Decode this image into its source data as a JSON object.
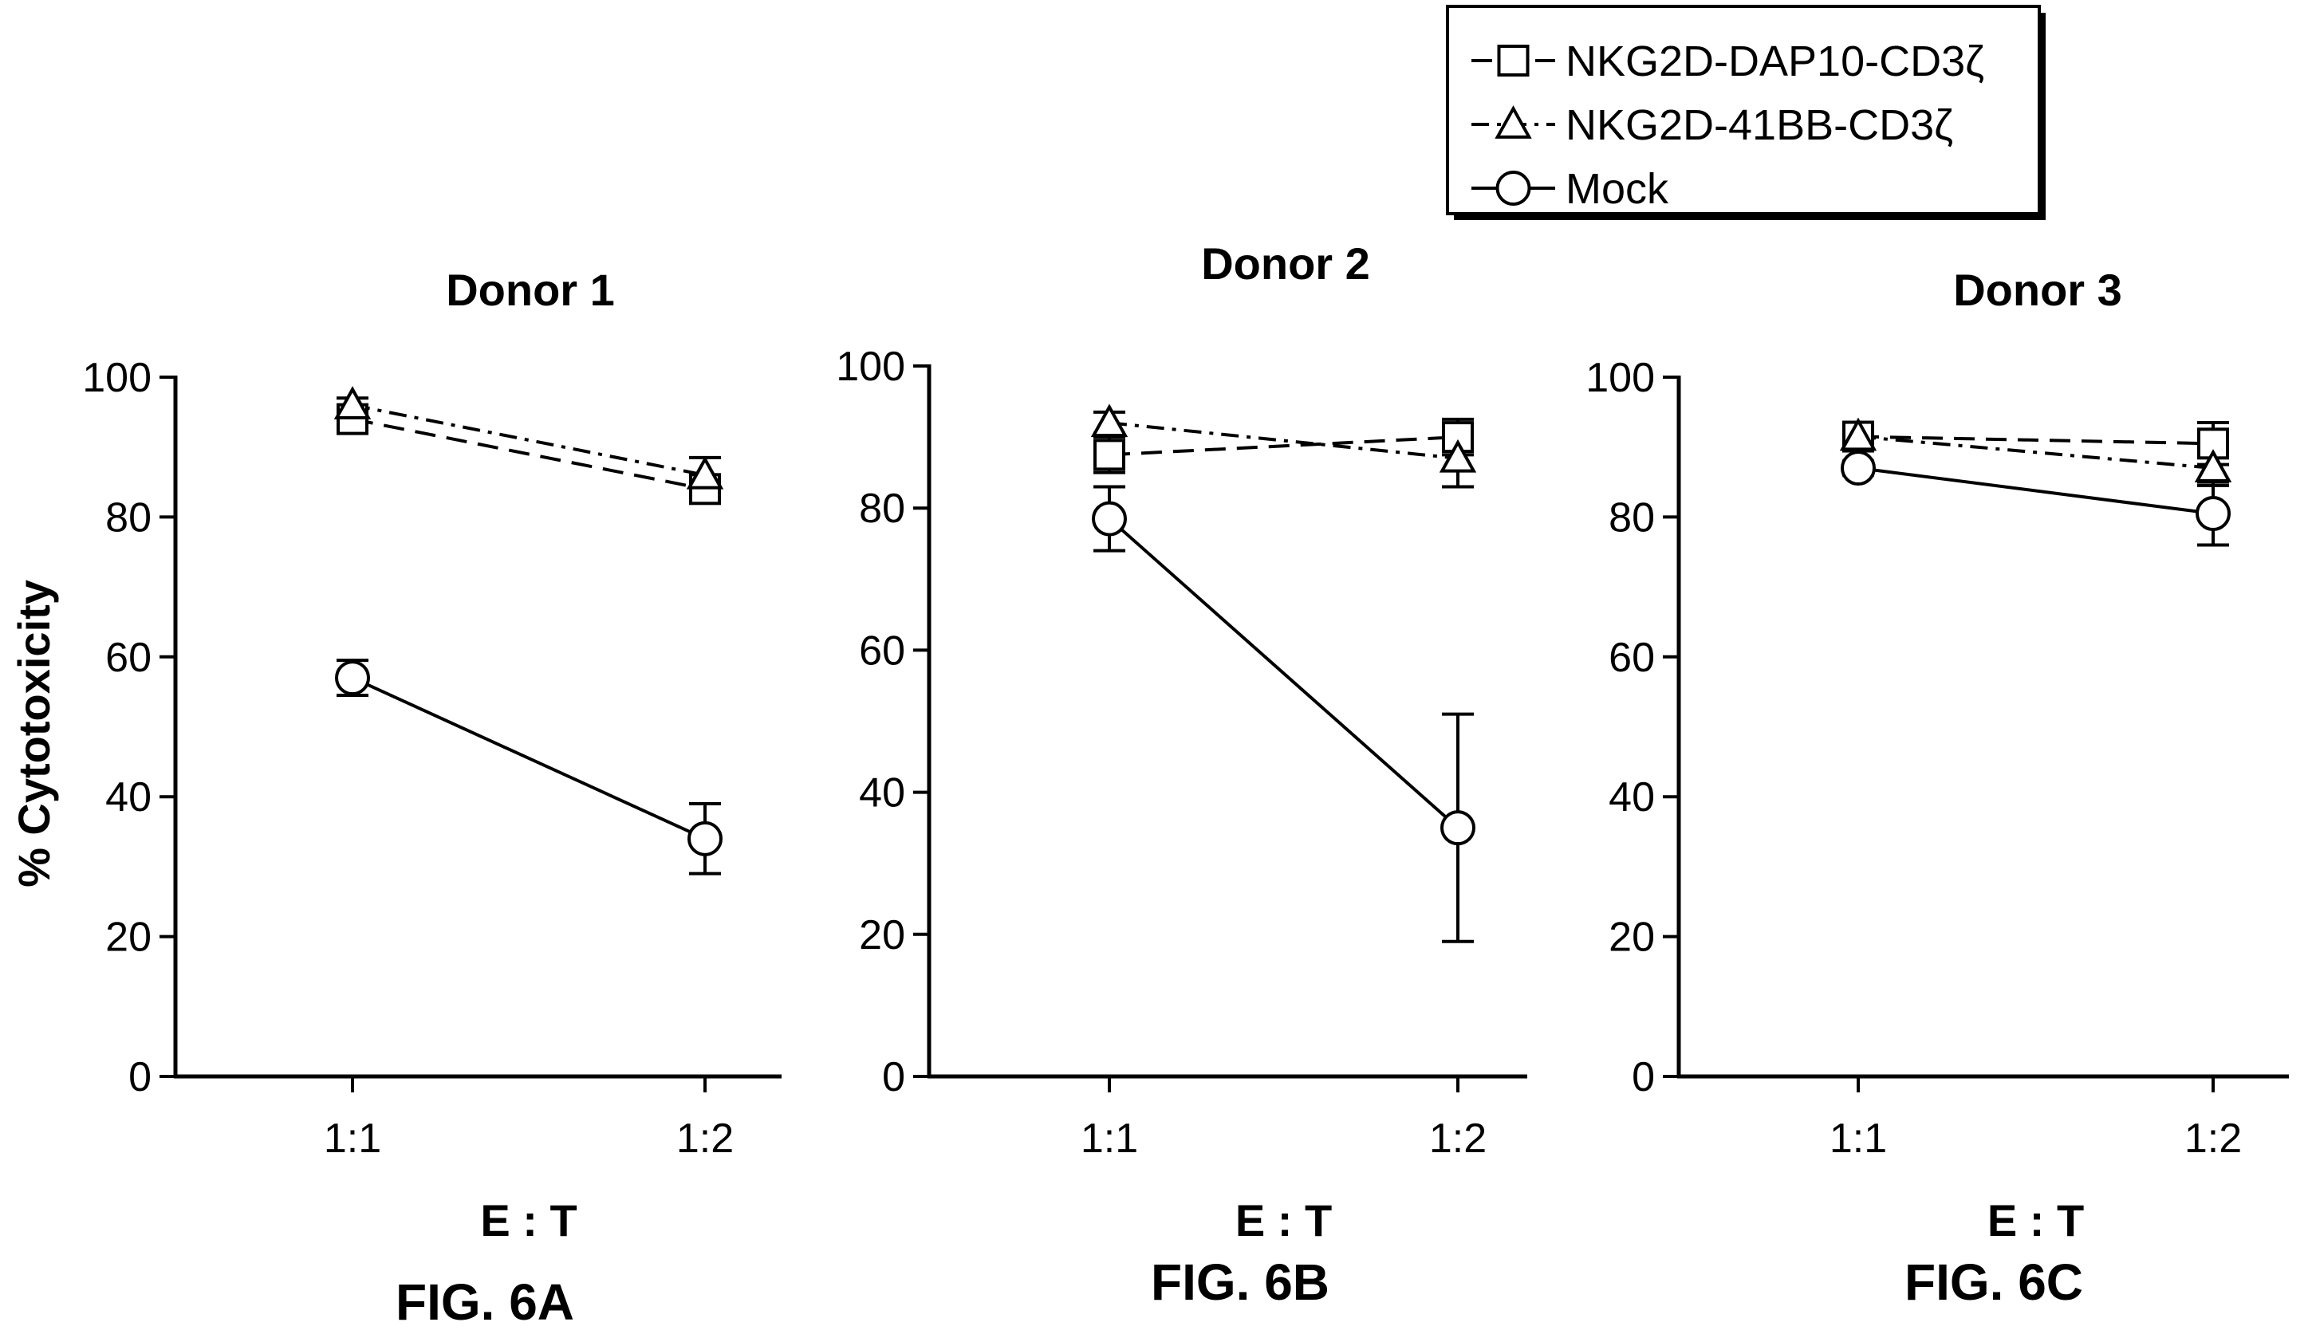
{
  "y_axis_label": "% Cytotoxicity",
  "legend": {
    "placement": "top-right",
    "entries": [
      {
        "label": "NKG2D-DAP10-CD3ζ",
        "marker": "square",
        "line": "dashed"
      },
      {
        "label": "NKG2D-41BB-CD3ζ",
        "marker": "triangle",
        "line": "dash-dot"
      },
      {
        "label": "Mock",
        "marker": "circle",
        "line": "solid"
      }
    ]
  },
  "chart_data": [
    {
      "type": "line",
      "title": "Donor 1",
      "figure_label": "FIG. 6A",
      "xlabel": "E : T",
      "ylabel": "% Cytotoxicity",
      "categories": [
        "1:1",
        "1:2"
      ],
      "ylim": [
        0,
        100
      ],
      "yticks": [
        0,
        20,
        40,
        60,
        80,
        100
      ],
      "grid": false,
      "series": [
        {
          "name": "NKG2D-DAP10-CD3ζ",
          "values": [
            94,
            84
          ],
          "errors": [
            1,
            1
          ]
        },
        {
          "name": "NKG2D-41BB-CD3ζ",
          "values": [
            96,
            86
          ],
          "errors": [
            1,
            2.5
          ]
        },
        {
          "name": "Mock",
          "values": [
            57,
            34
          ],
          "errors": [
            2.5,
            5
          ]
        }
      ]
    },
    {
      "type": "line",
      "title": "Donor 2",
      "figure_label": "FIG. 6B",
      "xlabel": "E : T",
      "ylabel": "",
      "categories": [
        "1:1",
        "1:2"
      ],
      "ylim": [
        0,
        100
      ],
      "yticks": [
        0,
        20,
        40,
        60,
        80,
        100
      ],
      "grid": false,
      "series": [
        {
          "name": "NKG2D-DAP10-CD3ζ",
          "values": [
            87.5,
            90
          ],
          "errors": [
            2.5,
            2.5
          ]
        },
        {
          "name": "NKG2D-41BB-CD3ζ",
          "values": [
            92,
            87
          ],
          "errors": [
            1.5,
            4
          ]
        },
        {
          "name": "Mock",
          "values": [
            78.5,
            35
          ],
          "errors": [
            4.5,
            16
          ]
        }
      ]
    },
    {
      "type": "line",
      "title": "Donor 3",
      "figure_label": "FIG. 6C",
      "xlabel": "E : T",
      "ylabel": "",
      "categories": [
        "1:1",
        "1:2"
      ],
      "ylim": [
        0,
        100
      ],
      "yticks": [
        0,
        20,
        40,
        60,
        80,
        100
      ],
      "grid": false,
      "series": [
        {
          "name": "NKG2D-DAP10-CD3ζ",
          "values": [
            91.5,
            90.5
          ],
          "errors": [
            1.5,
            3
          ]
        },
        {
          "name": "NKG2D-41BB-CD3ζ",
          "values": [
            91.5,
            87
          ],
          "errors": [
            1,
            2.5
          ]
        },
        {
          "name": "Mock",
          "values": [
            87,
            80.5
          ],
          "errors": [
            1,
            4.5
          ]
        }
      ]
    }
  ]
}
